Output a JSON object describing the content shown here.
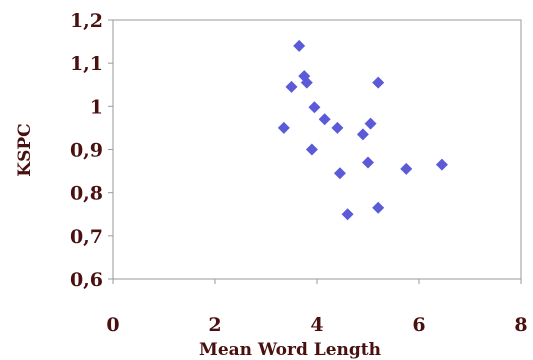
{
  "chart_data": {
    "type": "scatter",
    "xlabel": "Mean Word Length",
    "ylabel": "KSPC",
    "xlim": [
      0,
      8
    ],
    "ylim": [
      0.6,
      1.2
    ],
    "x_ticks": [
      "0",
      "2",
      "4",
      "6",
      "8"
    ],
    "y_ticks": [
      "0,6",
      "0,7",
      "0,8",
      "0,9",
      "1",
      "1,1",
      "1,2"
    ],
    "grid": false,
    "legend": "none",
    "marker": "diamond",
    "series": [
      {
        "x": [
          3.65,
          3.75,
          3.8,
          3.5,
          5.2,
          3.95,
          4.15,
          4.4,
          5.05,
          4.9,
          3.35,
          3.9,
          5.0,
          6.45,
          5.75,
          4.45,
          5.2,
          4.6
        ],
        "y": [
          1.14,
          1.07,
          1.055,
          1.045,
          1.055,
          0.998,
          0.97,
          0.95,
          0.96,
          0.935,
          0.95,
          0.9,
          0.87,
          0.865,
          0.855,
          0.845,
          0.765,
          0.75
        ]
      }
    ],
    "colors": {
      "marker": "#5b5bd9",
      "axis": "#888888",
      "text": "#4a0f0f"
    }
  }
}
